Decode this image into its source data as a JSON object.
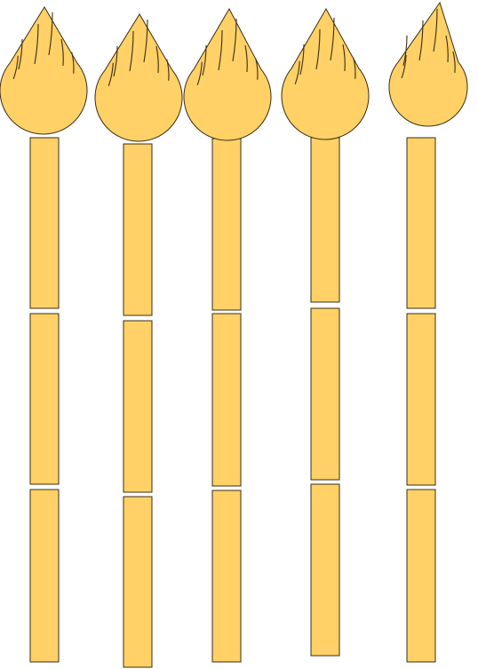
{
  "colors": {
    "fill": "#FFD166",
    "stroke": "#3a2e16",
    "background": "#ffffff"
  },
  "figure": {
    "items": [
      {
        "name": "paintbrush-1",
        "head_icon": "brush-head-icon",
        "handle_segments": 3
      },
      {
        "name": "paintbrush-2",
        "head_icon": "brush-head-icon",
        "handle_segments": 3
      },
      {
        "name": "paintbrush-3",
        "head_icon": "brush-head-icon",
        "handle_segments": 3
      },
      {
        "name": "paintbrush-4",
        "head_icon": "brush-head-icon",
        "handle_segments": 3
      },
      {
        "name": "paintbrush-5",
        "head_icon": "brush-head-icon",
        "handle_segments": 3
      }
    ]
  }
}
